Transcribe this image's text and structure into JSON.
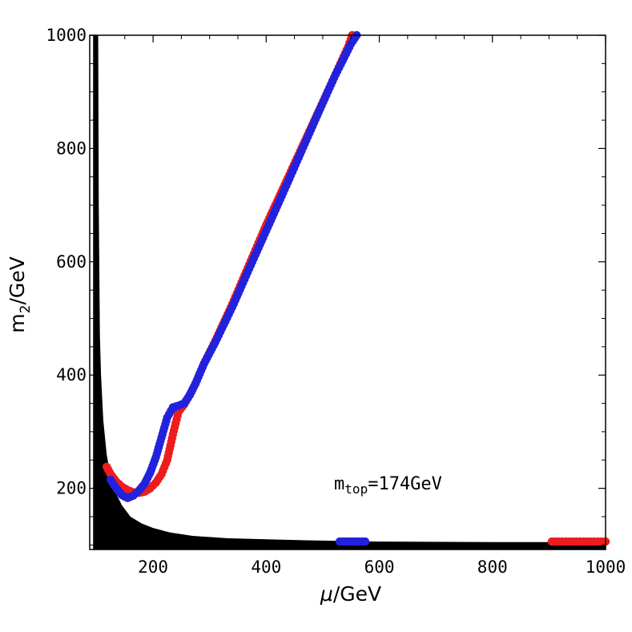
{
  "chart_data": {
    "type": "scatter",
    "xlabel_symbol": "μ",
    "xlabel_unit": "/GeV",
    "ylabel_main": "m",
    "ylabel_sub": "2",
    "ylabel_unit": "/GeV",
    "xlim": [
      88,
      1000
    ],
    "ylim": [
      92,
      1000
    ],
    "xticks": [
      200,
      400,
      600,
      800,
      1000
    ],
    "yticks": [
      200,
      400,
      600,
      800,
      1000
    ],
    "xtick_labels": [
      "200",
      "400",
      "600",
      "800",
      "1000"
    ],
    "ytick_labels": [
      "200",
      "400",
      "600",
      "800",
      "1000"
    ],
    "annotation": {
      "main": "m",
      "sub": "top",
      "rest": "=174GeV",
      "x": 520,
      "y": 198
    },
    "colors": {
      "red": "#ee1c1c",
      "blue": "#2222dd",
      "black": "#000000"
    },
    "series": [
      {
        "color": "red",
        "points": [
          [
            118,
            238
          ],
          [
            125,
            225
          ],
          [
            135,
            212
          ],
          [
            145,
            203
          ],
          [
            155,
            197
          ],
          [
            165,
            193
          ],
          [
            175,
            192
          ],
          [
            185,
            194
          ],
          [
            195,
            200
          ],
          [
            205,
            210
          ],
          [
            215,
            225
          ],
          [
            225,
            250
          ],
          [
            235,
            295
          ],
          [
            245,
            335
          ],
          [
            255,
            348
          ],
          [
            265,
            365
          ],
          [
            275,
            385
          ],
          [
            290,
            420
          ],
          [
            310,
            460
          ],
          [
            340,
            525
          ],
          [
            370,
            595
          ],
          [
            400,
            665
          ],
          [
            430,
            730
          ],
          [
            460,
            795
          ],
          [
            490,
            860
          ],
          [
            520,
            925
          ],
          [
            545,
            980
          ],
          [
            552,
            1000
          ]
        ]
      },
      {
        "color": "blue",
        "points": [
          [
            125,
            215
          ],
          [
            135,
            200
          ],
          [
            145,
            188
          ],
          [
            155,
            183
          ],
          [
            165,
            187
          ],
          [
            175,
            196
          ],
          [
            185,
            208
          ],
          [
            195,
            228
          ],
          [
            205,
            255
          ],
          [
            215,
            290
          ],
          [
            225,
            325
          ],
          [
            235,
            343
          ],
          [
            245,
            346
          ],
          [
            255,
            350
          ],
          [
            265,
            365
          ],
          [
            275,
            385
          ],
          [
            290,
            420
          ],
          [
            310,
            458
          ],
          [
            340,
            520
          ],
          [
            370,
            588
          ],
          [
            400,
            655
          ],
          [
            430,
            722
          ],
          [
            460,
            790
          ],
          [
            490,
            858
          ],
          [
            520,
            925
          ],
          [
            550,
            985
          ],
          [
            560,
            1000
          ]
        ]
      },
      {
        "color": "blue",
        "points": [
          [
            530,
            106
          ],
          [
            545,
            106
          ],
          [
            560,
            106
          ],
          [
            575,
            106
          ]
        ]
      },
      {
        "color": "red",
        "points": [
          [
            905,
            106
          ],
          [
            930,
            106
          ],
          [
            955,
            106
          ],
          [
            980,
            106
          ],
          [
            1000,
            106
          ]
        ]
      }
    ],
    "excluded_region": {
      "color": "black",
      "boundary": [
        [
          103,
          1000
        ],
        [
          104,
          700
        ],
        [
          106,
          470
        ],
        [
          108,
          400
        ],
        [
          112,
          320
        ],
        [
          118,
          260
        ],
        [
          125,
          220
        ],
        [
          135,
          190
        ],
        [
          145,
          170
        ],
        [
          160,
          150
        ],
        [
          180,
          138
        ],
        [
          200,
          130
        ],
        [
          230,
          122
        ],
        [
          270,
          116
        ],
        [
          330,
          112
        ],
        [
          400,
          110
        ],
        [
          480,
          108
        ],
        [
          600,
          106
        ],
        [
          800,
          105
        ],
        [
          1000,
          105
        ]
      ],
      "lower": 92,
      "left": 94
    }
  }
}
